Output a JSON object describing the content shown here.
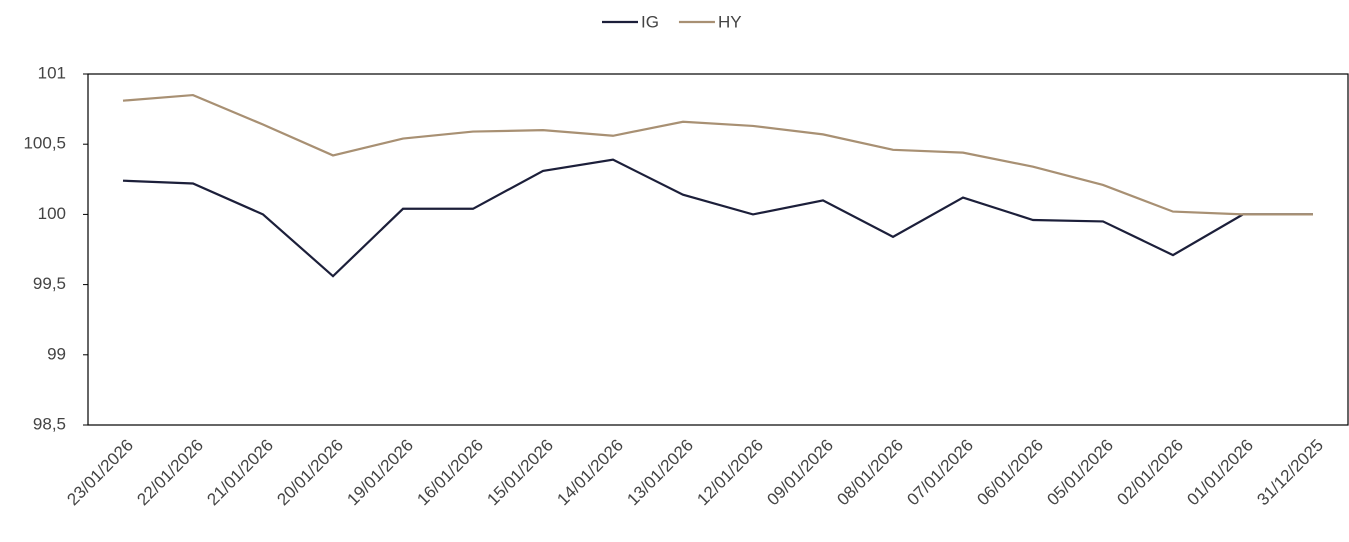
{
  "chart_data": {
    "type": "line",
    "categories": [
      "23/01/2026",
      "22/01/2026",
      "21/01/2026",
      "20/01/2026",
      "19/01/2026",
      "16/01/2026",
      "15/01/2026",
      "14/01/2026",
      "13/01/2026",
      "12/01/2026",
      "09/01/2026",
      "08/01/2026",
      "07/01/2026",
      "06/01/2026",
      "05/01/2026",
      "02/01/2026",
      "01/01/2026",
      "31/12/2025"
    ],
    "series": [
      {
        "name": "IG",
        "color": "#1c1f3a",
        "values": [
          100.24,
          100.22,
          100.0,
          99.56,
          100.04,
          100.04,
          100.31,
          100.39,
          100.14,
          100.0,
          100.1,
          99.84,
          100.12,
          99.96,
          99.95,
          99.71,
          100,
          100
        ]
      },
      {
        "name": "HY",
        "color": "#a89073",
        "values": [
          100.81,
          100.85,
          100.64,
          100.42,
          100.54,
          100.59,
          100.6,
          100.56,
          100.66,
          100.63,
          100.57,
          100.46,
          100.44,
          100.34,
          100.21,
          100.02,
          100,
          100
        ]
      }
    ],
    "ylim": [
      98.5,
      101
    ],
    "yticks": [
      {
        "value": 98.5,
        "label": "98,5"
      },
      99,
      {
        "value": 99.5,
        "label": "99,5"
      },
      100,
      {
        "value": 100.5,
        "label": "100,5"
      },
      101
    ],
    "grid": false,
    "legend": "top"
  }
}
